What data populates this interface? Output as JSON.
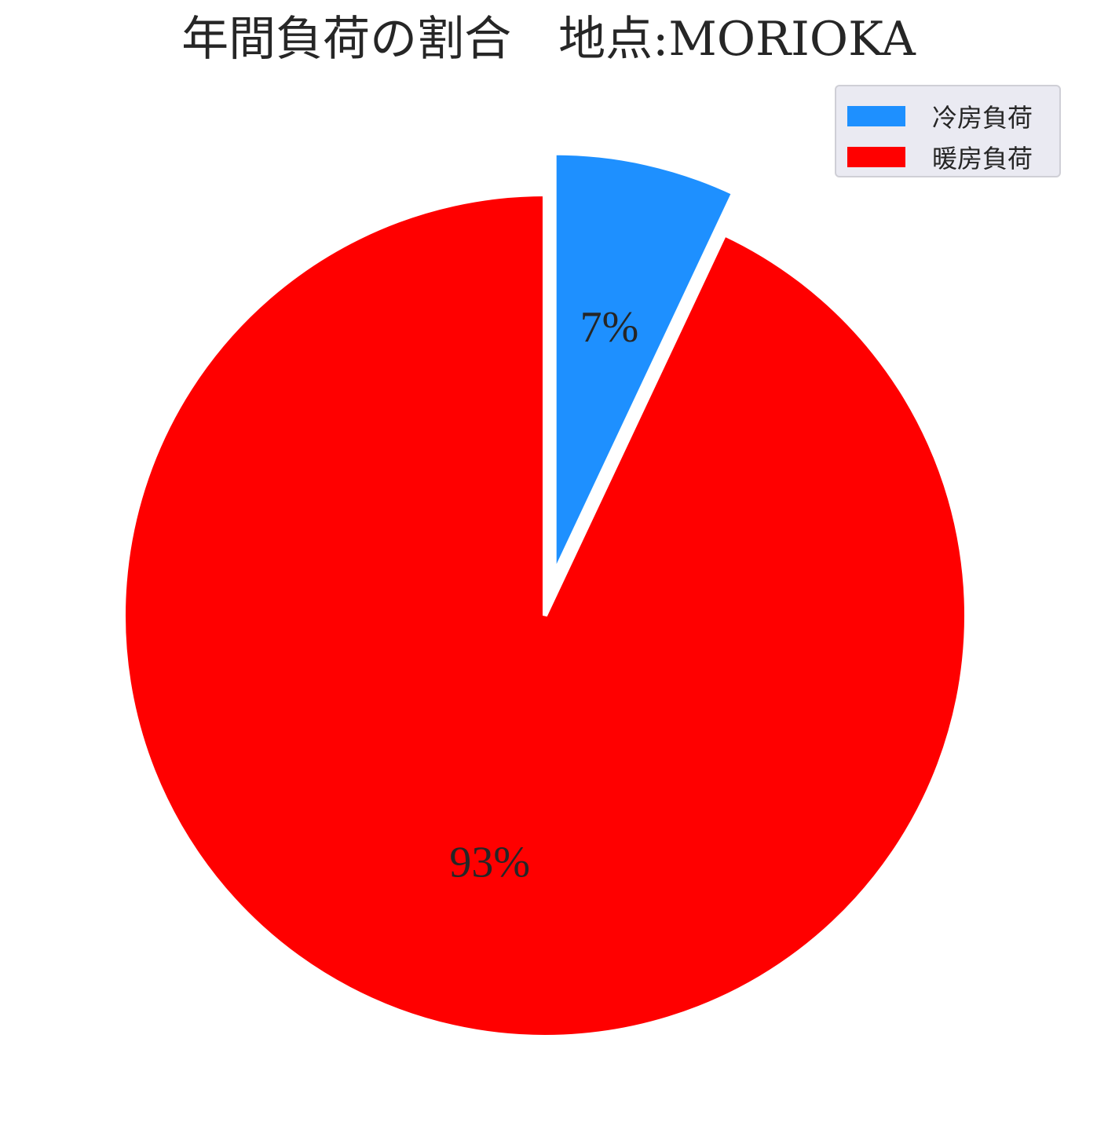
{
  "chart_data": {
    "type": "pie",
    "title": "年間負荷の割合　地点:MORIOKA",
    "categories": [
      "冷房負荷",
      "暖房負荷"
    ],
    "values": [
      7,
      93
    ],
    "labels": [
      "7%",
      "93%"
    ],
    "colors": [
      "#1e90ff",
      "#ff0000"
    ],
    "explode": [
      true,
      false
    ],
    "start_angle_deg": 90,
    "direction": "clockwise",
    "legend": {
      "position": "top-right",
      "entries": [
        "冷房負荷",
        "暖房負荷"
      ]
    }
  }
}
